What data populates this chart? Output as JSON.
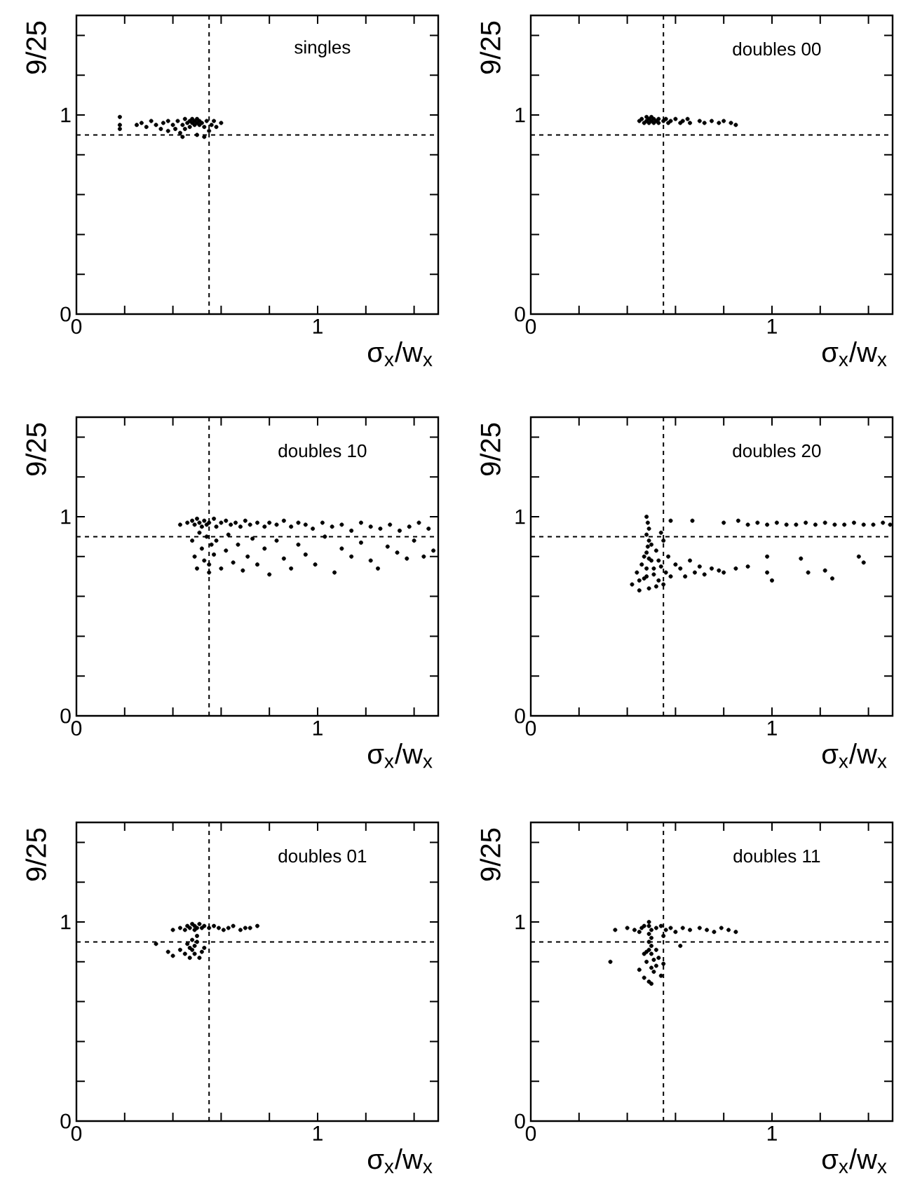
{
  "chart_data": [
    {
      "type": "scatter",
      "title": "singles",
      "xlabel": "σ$_{x}$/w$_{x}$",
      "ylabel": "9/25",
      "color": "#000000",
      "xlim": [
        0,
        1.5
      ],
      "ylim": [
        0,
        1.5
      ],
      "xticks": [
        0,
        {
          "value": 0.2,
          "label": null
        },
        {
          "value": 0.4,
          "label": null
        },
        {
          "value": 0.6,
          "label": null
        },
        {
          "value": 0.8,
          "label": null
        },
        1,
        {
          "value": 1.2,
          "label": null
        },
        {
          "value": 1.4,
          "label": null
        }
      ],
      "yticks": [
        0,
        {
          "value": 0.2,
          "label": null
        },
        {
          "value": 0.4,
          "label": null
        },
        {
          "value": 0.6,
          "label": null
        },
        {
          "value": 0.8,
          "label": null
        },
        1,
        {
          "value": 1.2,
          "label": null
        },
        {
          "value": 1.4,
          "label": null
        }
      ],
      "ref_lines": [
        {
          "axis": "x",
          "value": 0.55,
          "line_style": "dashed"
        },
        {
          "axis": "y",
          "value": 0.9,
          "line_style": "dashed"
        }
      ],
      "x": [
        0.18,
        0.18,
        0.18,
        0.25,
        0.27,
        0.29,
        0.31,
        0.33,
        0.35,
        0.36,
        0.38,
        0.38,
        0.4,
        0.41,
        0.42,
        0.43,
        0.44,
        0.45,
        0.45,
        0.46,
        0.47,
        0.47,
        0.48,
        0.48,
        0.49,
        0.49,
        0.5,
        0.5,
        0.51,
        0.51,
        0.52,
        0.53,
        0.54,
        0.55,
        0.56,
        0.57,
        0.58,
        0.6,
        0.5,
        0.44,
        0.53
      ],
      "values": [
        0.99,
        0.95,
        0.93,
        0.95,
        0.96,
        0.94,
        0.97,
        0.95,
        0.93,
        0.96,
        0.97,
        0.92,
        0.95,
        0.93,
        0.97,
        0.91,
        0.95,
        0.98,
        0.93,
        0.96,
        0.97,
        0.94,
        0.98,
        0.96,
        0.95,
        0.97,
        0.96,
        0.98,
        0.95,
        0.97,
        0.96,
        0.94,
        0.97,
        0.92,
        0.95,
        0.97,
        0.94,
        0.96,
        0.9,
        0.89,
        0.89
      ]
    },
    {
      "type": "scatter",
      "title": "doubles  00",
      "xlabel": "σ$_{x}$/w$_{x}$",
      "ylabel": "9/25",
      "color": "#000000",
      "xlim": [
        0,
        1.5
      ],
      "ylim": [
        0,
        1.5
      ],
      "xticks": [
        0,
        {
          "value": 0.2,
          "label": null
        },
        {
          "value": 0.4,
          "label": null
        },
        {
          "value": 0.6,
          "label": null
        },
        {
          "value": 0.8,
          "label": null
        },
        1,
        {
          "value": 1.2,
          "label": null
        },
        {
          "value": 1.4,
          "label": null
        }
      ],
      "yticks": [
        0,
        {
          "value": 0.2,
          "label": null
        },
        {
          "value": 0.4,
          "label": null
        },
        {
          "value": 0.6,
          "label": null
        },
        {
          "value": 0.8,
          "label": null
        },
        1,
        {
          "value": 1.2,
          "label": null
        },
        {
          "value": 1.4,
          "label": null
        }
      ],
      "ref_lines": [
        {
          "axis": "x",
          "value": 0.55,
          "line_style": "dashed"
        },
        {
          "axis": "y",
          "value": 0.9,
          "line_style": "dashed"
        }
      ],
      "x": [
        0.45,
        0.46,
        0.47,
        0.48,
        0.48,
        0.49,
        0.49,
        0.5,
        0.5,
        0.51,
        0.51,
        0.52,
        0.53,
        0.53,
        0.55,
        0.56,
        0.57,
        0.58,
        0.6,
        0.62,
        0.63,
        0.65,
        0.66,
        0.7,
        0.72,
        0.75,
        0.78,
        0.8,
        0.83,
        0.85
      ],
      "values": [
        0.97,
        0.98,
        0.96,
        0.97,
        0.99,
        0.96,
        0.98,
        0.97,
        0.99,
        0.96,
        0.98,
        0.97,
        0.98,
        0.96,
        0.97,
        0.98,
        0.96,
        0.97,
        0.98,
        0.96,
        0.97,
        0.98,
        0.96,
        0.97,
        0.96,
        0.97,
        0.96,
        0.97,
        0.96,
        0.95
      ]
    },
    {
      "type": "scatter",
      "title": "doubles  10",
      "xlabel": "σ$_{x}$/w$_{x}$",
      "ylabel": "9/25",
      "color": "#000000",
      "xlim": [
        0,
        1.5
      ],
      "ylim": [
        0,
        1.5
      ],
      "xticks": [
        0,
        {
          "value": 0.2,
          "label": null
        },
        {
          "value": 0.4,
          "label": null
        },
        {
          "value": 0.6,
          "label": null
        },
        {
          "value": 0.8,
          "label": null
        },
        1,
        {
          "value": 1.2,
          "label": null
        },
        {
          "value": 1.4,
          "label": null
        }
      ],
      "yticks": [
        0,
        {
          "value": 0.2,
          "label": null
        },
        {
          "value": 0.4,
          "label": null
        },
        {
          "value": 0.6,
          "label": null
        },
        {
          "value": 0.8,
          "label": null
        },
        1,
        {
          "value": 1.2,
          "label": null
        },
        {
          "value": 1.4,
          "label": null
        }
      ],
      "ref_lines": [
        {
          "axis": "x",
          "value": 0.55,
          "line_style": "dashed"
        },
        {
          "axis": "y",
          "value": 0.9,
          "line_style": "dashed"
        }
      ],
      "x": [
        0.43,
        0.46,
        0.48,
        0.49,
        0.5,
        0.51,
        0.52,
        0.53,
        0.54,
        0.55,
        0.57,
        0.58,
        0.6,
        0.62,
        0.64,
        0.66,
        0.68,
        0.7,
        0.72,
        0.75,
        0.78,
        0.8,
        0.83,
        0.86,
        0.89,
        0.92,
        0.95,
        0.98,
        1.02,
        1.06,
        1.1,
        1.14,
        1.18,
        1.22,
        1.26,
        1.3,
        1.34,
        1.38,
        1.42,
        1.46,
        0.48,
        0.49,
        0.5,
        0.51,
        0.52,
        0.53,
        0.54,
        0.55,
        0.55,
        0.56,
        0.57,
        0.58,
        0.6,
        0.62,
        0.63,
        0.65,
        0.67,
        0.69,
        0.71,
        0.73,
        0.75,
        0.78,
        0.8,
        0.83,
        0.86,
        0.89,
        0.92,
        0.95,
        0.99,
        1.03,
        1.07,
        1.1,
        1.14,
        1.18,
        1.22,
        1.25,
        1.29,
        1.33,
        1.37,
        1.4,
        1.44,
        1.48
      ],
      "values": [
        0.96,
        0.97,
        0.98,
        0.96,
        0.99,
        0.97,
        0.95,
        0.98,
        0.96,
        0.97,
        0.99,
        0.95,
        0.97,
        0.98,
        0.96,
        0.97,
        0.95,
        0.98,
        0.96,
        0.97,
        0.95,
        0.97,
        0.96,
        0.98,
        0.95,
        0.97,
        0.96,
        0.94,
        0.97,
        0.95,
        0.96,
        0.93,
        0.97,
        0.95,
        0.94,
        0.96,
        0.93,
        0.95,
        0.97,
        0.94,
        0.88,
        0.8,
        0.74,
        0.92,
        0.84,
        0.78,
        0.9,
        0.76,
        0.72,
        0.86,
        0.81,
        0.88,
        0.74,
        0.83,
        0.91,
        0.77,
        0.86,
        0.73,
        0.8,
        0.89,
        0.76,
        0.84,
        0.71,
        0.88,
        0.79,
        0.74,
        0.86,
        0.81,
        0.76,
        0.9,
        0.72,
        0.84,
        0.8,
        0.87,
        0.78,
        0.74,
        0.85,
        0.82,
        0.79,
        0.88,
        0.8,
        0.83
      ]
    },
    {
      "type": "scatter",
      "title": "doubles  20",
      "xlabel": "σ$_{x}$/w$_{x}$",
      "ylabel": "9/25",
      "color": "#000000",
      "xlim": [
        0,
        1.5
      ],
      "ylim": [
        0,
        1.5
      ],
      "xticks": [
        0,
        {
          "value": 0.2,
          "label": null
        },
        {
          "value": 0.4,
          "label": null
        },
        {
          "value": 0.6,
          "label": null
        },
        {
          "value": 0.8,
          "label": null
        },
        1,
        {
          "value": 1.2,
          "label": null
        },
        {
          "value": 1.4,
          "label": null
        }
      ],
      "yticks": [
        0,
        {
          "value": 0.2,
          "label": null
        },
        {
          "value": 0.4,
          "label": null
        },
        {
          "value": 0.6,
          "label": null
        },
        {
          "value": 0.8,
          "label": null
        },
        1,
        {
          "value": 1.2,
          "label": null
        },
        {
          "value": 1.4,
          "label": null
        }
      ],
      "ref_lines": [
        {
          "axis": "x",
          "value": 0.55,
          "line_style": "dashed"
        },
        {
          "axis": "y",
          "value": 0.9,
          "line_style": "dashed"
        }
      ],
      "x": [
        0.48,
        0.485,
        0.49,
        0.48,
        0.49,
        0.485,
        0.48,
        0.49,
        0.42,
        0.44,
        0.45,
        0.46,
        0.47,
        0.48,
        0.49,
        0.5,
        0.51,
        0.52,
        0.53,
        0.54,
        0.55,
        0.56,
        0.57,
        0.58,
        0.6,
        0.45,
        0.47,
        0.5,
        0.52,
        0.54,
        0.48,
        0.51,
        0.55,
        0.53,
        0.62,
        0.64,
        0.66,
        0.68,
        0.7,
        0.72,
        0.75,
        0.78,
        0.8,
        0.85,
        0.9,
        0.98,
        0.98,
        1.0,
        1.12,
        1.15,
        1.22,
        1.25,
        1.36,
        1.38,
        0.58,
        0.67,
        0.8,
        0.86,
        0.9,
        0.94,
        0.98,
        1.02,
        1.06,
        1.1,
        1.14,
        1.18,
        1.22,
        1.26,
        1.3,
        1.34,
        1.38,
        1.42,
        1.46,
        1.49
      ],
      "values": [
        1.0,
        0.97,
        0.94,
        0.91,
        0.88,
        0.85,
        0.82,
        0.79,
        0.66,
        0.72,
        0.63,
        0.76,
        0.69,
        0.74,
        0.64,
        0.78,
        0.71,
        0.83,
        0.68,
        0.75,
        0.88,
        0.72,
        0.8,
        0.7,
        0.76,
        0.68,
        0.8,
        0.86,
        0.65,
        0.92,
        0.7,
        0.74,
        0.66,
        0.78,
        0.74,
        0.7,
        0.78,
        0.72,
        0.75,
        0.71,
        0.74,
        0.73,
        0.72,
        0.74,
        0.75,
        0.8,
        0.72,
        0.68,
        0.79,
        0.72,
        0.73,
        0.69,
        0.8,
        0.77,
        0.98,
        0.98,
        0.97,
        0.98,
        0.96,
        0.97,
        0.96,
        0.97,
        0.96,
        0.96,
        0.97,
        0.96,
        0.97,
        0.96,
        0.96,
        0.97,
        0.96,
        0.96,
        0.97,
        0.96
      ]
    },
    {
      "type": "scatter",
      "title": "doubles  01",
      "xlabel": "σ$_{x}$/w$_{x}$",
      "ylabel": "9/25",
      "color": "#000000",
      "xlim": [
        0,
        1.5
      ],
      "ylim": [
        0,
        1.5
      ],
      "xticks": [
        0,
        {
          "value": 0.2,
          "label": null
        },
        {
          "value": 0.4,
          "label": null
        },
        {
          "value": 0.6,
          "label": null
        },
        {
          "value": 0.8,
          "label": null
        },
        1,
        {
          "value": 1.2,
          "label": null
        },
        {
          "value": 1.4,
          "label": null
        }
      ],
      "yticks": [
        0,
        {
          "value": 0.2,
          "label": null
        },
        {
          "value": 0.4,
          "label": null
        },
        {
          "value": 0.6,
          "label": null
        },
        {
          "value": 0.8,
          "label": null
        },
        1,
        {
          "value": 1.2,
          "label": null
        },
        {
          "value": 1.4,
          "label": null
        }
      ],
      "ref_lines": [
        {
          "axis": "x",
          "value": 0.55,
          "line_style": "dashed"
        },
        {
          "axis": "y",
          "value": 0.9,
          "line_style": "dashed"
        }
      ],
      "x": [
        0.4,
        0.43,
        0.45,
        0.46,
        0.47,
        0.48,
        0.49,
        0.49,
        0.5,
        0.51,
        0.52,
        0.53,
        0.55,
        0.57,
        0.59,
        0.61,
        0.63,
        0.65,
        0.68,
        0.7,
        0.72,
        0.75,
        0.33,
        0.38,
        0.4,
        0.43,
        0.45,
        0.46,
        0.47,
        0.48,
        0.48,
        0.49,
        0.49,
        0.5,
        0.51,
        0.52,
        0.53,
        0.47,
        0.5
      ],
      "values": [
        0.96,
        0.97,
        0.96,
        0.98,
        0.97,
        0.99,
        0.96,
        0.98,
        0.97,
        0.99,
        0.97,
        0.98,
        0.97,
        0.98,
        0.97,
        0.96,
        0.97,
        0.98,
        0.96,
        0.97,
        0.97,
        0.98,
        0.89,
        0.85,
        0.83,
        0.86,
        0.84,
        0.89,
        0.87,
        0.91,
        0.86,
        0.88,
        0.84,
        0.9,
        0.82,
        0.85,
        0.87,
        0.82,
        0.93
      ]
    },
    {
      "type": "scatter",
      "title": "doubles  11",
      "xlabel": "σ$_{x}$/w$_{x}$",
      "ylabel": "9/25",
      "color": "#000000",
      "xlim": [
        0,
        1.5
      ],
      "ylim": [
        0,
        1.5
      ],
      "xticks": [
        0,
        {
          "value": 0.2,
          "label": null
        },
        {
          "value": 0.4,
          "label": null
        },
        {
          "value": 0.6,
          "label": null
        },
        {
          "value": 0.8,
          "label": null
        },
        1,
        {
          "value": 1.2,
          "label": null
        },
        {
          "value": 1.4,
          "label": null
        }
      ],
      "yticks": [
        0,
        {
          "value": 0.2,
          "label": null
        },
        {
          "value": 0.4,
          "label": null
        },
        {
          "value": 0.6,
          "label": null
        },
        {
          "value": 0.8,
          "label": null
        },
        1,
        {
          "value": 1.2,
          "label": null
        },
        {
          "value": 1.4,
          "label": null
        }
      ],
      "ref_lines": [
        {
          "axis": "x",
          "value": 0.55,
          "line_style": "dashed"
        },
        {
          "axis": "y",
          "value": 0.9,
          "line_style": "dashed"
        }
      ],
      "x": [
        0.49,
        0.49,
        0.5,
        0.49,
        0.5,
        0.49,
        0.5,
        0.49,
        0.48,
        0.5,
        0.35,
        0.4,
        0.43,
        0.45,
        0.46,
        0.47,
        0.52,
        0.54,
        0.56,
        0.58,
        0.6,
        0.63,
        0.66,
        0.7,
        0.73,
        0.76,
        0.79,
        0.82,
        0.85,
        0.55,
        0.33,
        0.45,
        0.47,
        0.48,
        0.5,
        0.51,
        0.52,
        0.53,
        0.54,
        0.55,
        0.47,
        0.5,
        0.52,
        0.49,
        0.51,
        0.62
      ],
      "values": [
        1.0,
        0.98,
        0.96,
        0.94,
        0.92,
        0.9,
        0.88,
        0.86,
        0.85,
        0.84,
        0.96,
        0.97,
        0.96,
        0.95,
        0.97,
        0.98,
        0.97,
        0.98,
        0.96,
        0.97,
        0.95,
        0.97,
        0.96,
        0.97,
        0.96,
        0.95,
        0.97,
        0.96,
        0.95,
        0.93,
        0.8,
        0.76,
        0.72,
        0.8,
        0.69,
        0.75,
        0.78,
        0.82,
        0.73,
        0.79,
        0.84,
        0.77,
        0.86,
        0.7,
        0.81,
        0.88
      ]
    }
  ]
}
